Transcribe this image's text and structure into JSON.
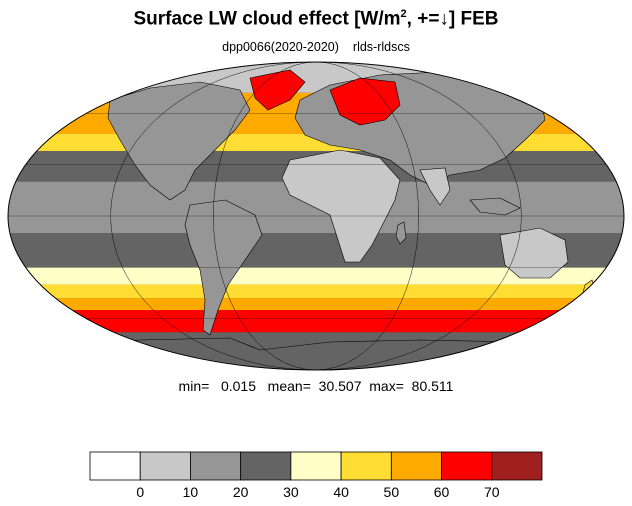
{
  "title": {
    "main": "Surface LW cloud effect [W/m",
    "sup": "2",
    "tail": ", +=↓]  FEB"
  },
  "subtitle": {
    "run": "dpp0066(2020-2020)",
    "variable": "rlds-rldscs"
  },
  "stats": {
    "min_label": "min=",
    "min": "0.015",
    "mean_label": "mean=",
    "mean": "30.507",
    "max_label": "max=",
    "max": "80.511"
  },
  "colorbar": {
    "colors": [
      "#ffffff",
      "#c8c8c8",
      "#969696",
      "#646464",
      "#ffffc8",
      "#ffdd33",
      "#ffaa00",
      "#ff0000",
      "#a02020"
    ],
    "ticks": [
      "0",
      "10",
      "20",
      "30",
      "40",
      "50",
      "60",
      "70"
    ]
  },
  "map": {
    "projection": "mollweide",
    "background_color": "#646464",
    "zones": [
      {
        "lat_from": 90,
        "lat_to": 72,
        "color": "#c8c8c8"
      },
      {
        "lat_from": 72,
        "lat_to": 48,
        "color": "#ffaa00"
      },
      {
        "lat_from": 48,
        "lat_to": 38,
        "color": "#ffdd33"
      },
      {
        "lat_from": 38,
        "lat_to": 20,
        "color": "#646464"
      },
      {
        "lat_from": 20,
        "lat_to": -10,
        "color": "#969696"
      },
      {
        "lat_from": -10,
        "lat_to": -30,
        "color": "#646464"
      },
      {
        "lat_from": -30,
        "lat_to": -40,
        "color": "#ffffc8"
      },
      {
        "lat_from": -40,
        "lat_to": -48,
        "color": "#ffdd33"
      },
      {
        "lat_from": -48,
        "lat_to": -55,
        "color": "#ffaa00"
      },
      {
        "lat_from": -55,
        "lat_to": -68,
        "color": "#ff0000"
      },
      {
        "lat_from": -68,
        "lat_to": -90,
        "color": "#646464"
      }
    ]
  }
}
